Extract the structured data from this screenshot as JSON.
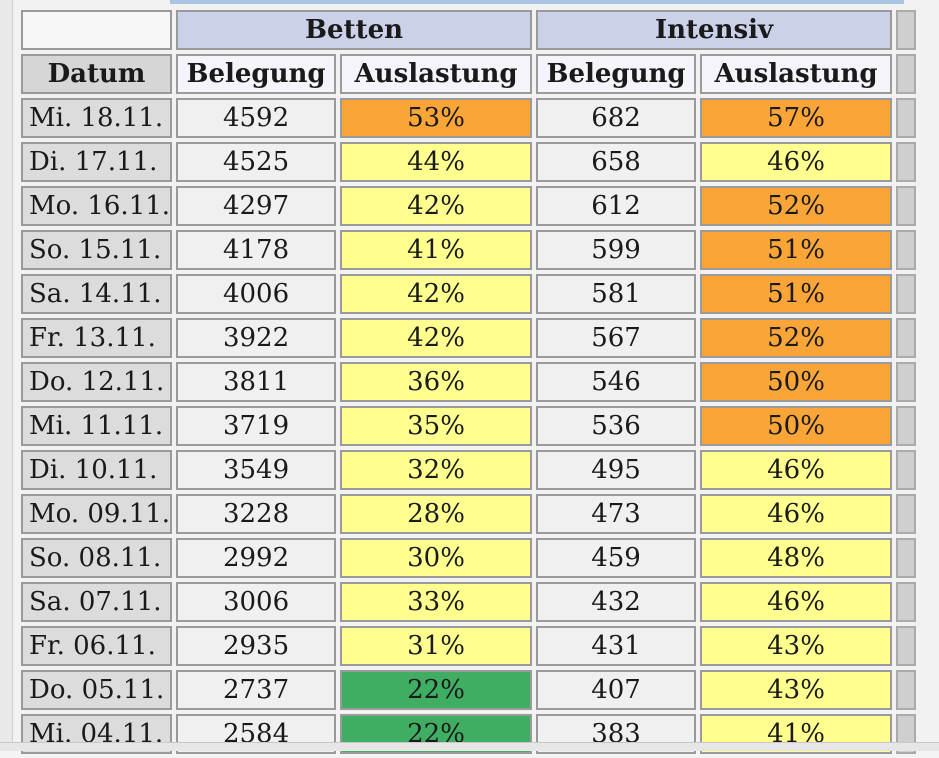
{
  "groups": {
    "betten": "Betten",
    "intensiv": "Intensiv"
  },
  "headers": {
    "datum": "Datum",
    "betten_belegung": "Belegung",
    "betten_auslastung": "Auslastung",
    "intensiv_belegung": "Belegung",
    "intensiv_auslastung": "Auslastung"
  },
  "colors": {
    "orange": "#f9a538",
    "yellow": "#ffff8f",
    "green": "#3fae63"
  },
  "rows": [
    {
      "datum": "Mi. 18.11.",
      "betten_belegung": "4592",
      "betten_auslastung": "53%",
      "betten_color": "orange",
      "intensiv_belegung": "682",
      "intensiv_auslastung": "57%",
      "intensiv_color": "orange"
    },
    {
      "datum": "Di. 17.11.",
      "betten_belegung": "4525",
      "betten_auslastung": "44%",
      "betten_color": "yellow",
      "intensiv_belegung": "658",
      "intensiv_auslastung": "46%",
      "intensiv_color": "yellow"
    },
    {
      "datum": "Mo. 16.11.",
      "betten_belegung": "4297",
      "betten_auslastung": "42%",
      "betten_color": "yellow",
      "intensiv_belegung": "612",
      "intensiv_auslastung": "52%",
      "intensiv_color": "orange"
    },
    {
      "datum": "So. 15.11.",
      "betten_belegung": "4178",
      "betten_auslastung": "41%",
      "betten_color": "yellow",
      "intensiv_belegung": "599",
      "intensiv_auslastung": "51%",
      "intensiv_color": "orange"
    },
    {
      "datum": "Sa. 14.11.",
      "betten_belegung": "4006",
      "betten_auslastung": "42%",
      "betten_color": "yellow",
      "intensiv_belegung": "581",
      "intensiv_auslastung": "51%",
      "intensiv_color": "orange"
    },
    {
      "datum": "Fr. 13.11.",
      "betten_belegung": "3922",
      "betten_auslastung": "42%",
      "betten_color": "yellow",
      "intensiv_belegung": "567",
      "intensiv_auslastung": "52%",
      "intensiv_color": "orange"
    },
    {
      "datum": "Do. 12.11.",
      "betten_belegung": "3811",
      "betten_auslastung": "36%",
      "betten_color": "yellow",
      "intensiv_belegung": "546",
      "intensiv_auslastung": "50%",
      "intensiv_color": "orange"
    },
    {
      "datum": "Mi. 11.11.",
      "betten_belegung": "3719",
      "betten_auslastung": "35%",
      "betten_color": "yellow",
      "intensiv_belegung": "536",
      "intensiv_auslastung": "50%",
      "intensiv_color": "orange"
    },
    {
      "datum": "Di. 10.11.",
      "betten_belegung": "3549",
      "betten_auslastung": "32%",
      "betten_color": "yellow",
      "intensiv_belegung": "495",
      "intensiv_auslastung": "46%",
      "intensiv_color": "yellow"
    },
    {
      "datum": "Mo. 09.11.",
      "betten_belegung": "3228",
      "betten_auslastung": "28%",
      "betten_color": "yellow",
      "intensiv_belegung": "473",
      "intensiv_auslastung": "46%",
      "intensiv_color": "yellow"
    },
    {
      "datum": "So. 08.11.",
      "betten_belegung": "2992",
      "betten_auslastung": "30%",
      "betten_color": "yellow",
      "intensiv_belegung": "459",
      "intensiv_auslastung": "48%",
      "intensiv_color": "yellow"
    },
    {
      "datum": "Sa. 07.11.",
      "betten_belegung": "3006",
      "betten_auslastung": "33%",
      "betten_color": "yellow",
      "intensiv_belegung": "432",
      "intensiv_auslastung": "46%",
      "intensiv_color": "yellow"
    },
    {
      "datum": "Fr. 06.11.",
      "betten_belegung": "2935",
      "betten_auslastung": "31%",
      "betten_color": "yellow",
      "intensiv_belegung": "431",
      "intensiv_auslastung": "43%",
      "intensiv_color": "yellow"
    },
    {
      "datum": "Do. 05.11.",
      "betten_belegung": "2737",
      "betten_auslastung": "22%",
      "betten_color": "green",
      "intensiv_belegung": "407",
      "intensiv_auslastung": "43%",
      "intensiv_color": "yellow"
    },
    {
      "datum": "Mi. 04.11.",
      "betten_belegung": "2584",
      "betten_auslastung": "22%",
      "betten_color": "green",
      "intensiv_belegung": "383",
      "intensiv_auslastung": "41%",
      "intensiv_color": "yellow"
    }
  ]
}
